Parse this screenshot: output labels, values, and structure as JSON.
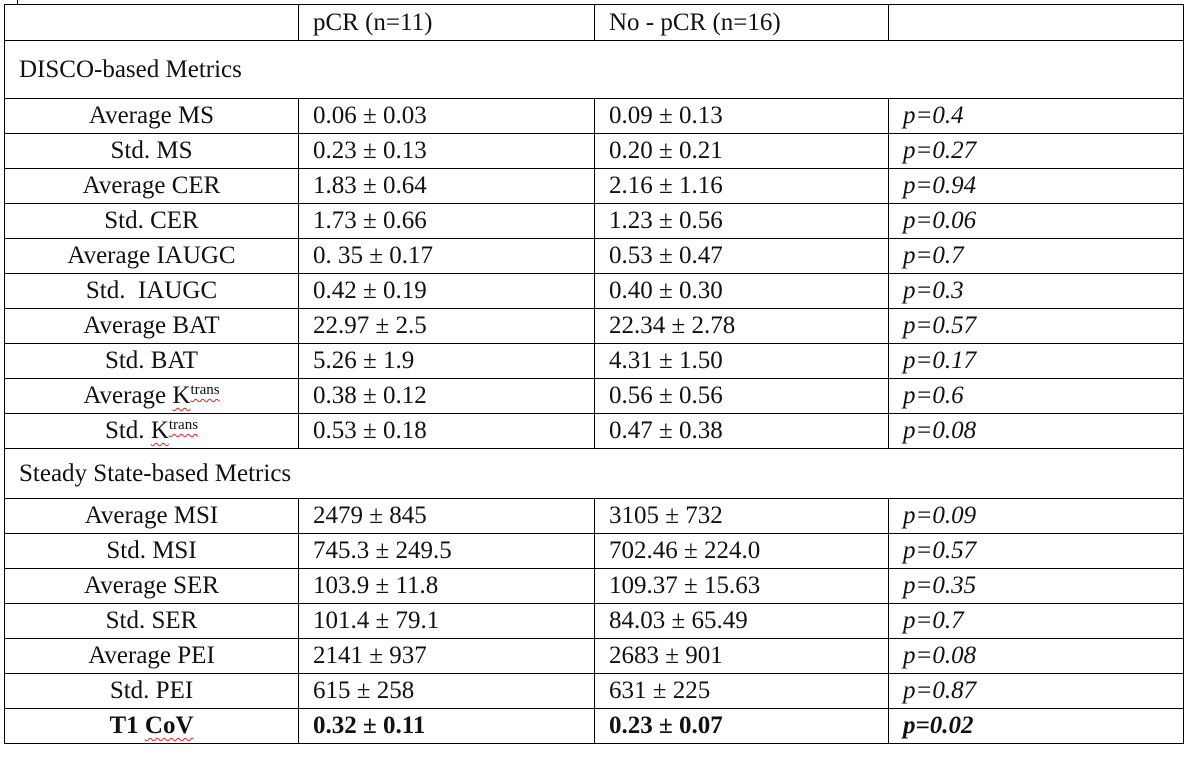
{
  "table": {
    "header": {
      "cells": [
        "pCR (n=11)",
        "No - pCR (n=16)"
      ]
    },
    "sections": [
      {
        "title": "DISCO-based Metrics",
        "rows": [
          {
            "metric": "Average MS",
            "pcr": "0.06 ± 0.03",
            "no_pcr": "0.09 ± 0.13",
            "p": "p=0.4"
          },
          {
            "metric": "Std. MS",
            "pcr": "0.23 ± 0.13",
            "no_pcr": "0.20 ± 0.21",
            "p": "p=0.27"
          },
          {
            "metric": "Average CER",
            "pcr": "1.83 ± 0.64",
            "no_pcr": "2.16 ± 1.16",
            "p": "p=0.94"
          },
          {
            "metric": "Std. CER",
            "pcr": "1.73 ± 0.66",
            "no_pcr": "1.23 ± 0.56",
            "p": "p=0.06"
          },
          {
            "metric": "Average IAUGC",
            "pcr": "0. 35 ± 0.17",
            "no_pcr": "0.53 ± 0.47",
            "p": "p=0.7"
          },
          {
            "metric": "Std.  IAUGC",
            "pcr": "0.42 ± 0.19",
            "no_pcr": "0.40 ± 0.30",
            "p": "p=0.3"
          },
          {
            "metric": "Average BAT",
            "pcr": "22.97 ± 2.5",
            "no_pcr": "22.34 ± 2.78",
            "p": "p=0.57"
          },
          {
            "metric": "Std. BAT",
            "pcr": "5.26 ± 1.9",
            "no_pcr": "4.31 ± 1.50",
            "p": "p=0.17"
          },
          {
            "metric": "Average K",
            "metric_sup": "trans",
            "misspelled": true,
            "pcr": "0.38 ± 0.12",
            "no_pcr": "0.56 ± 0.56",
            "p": "p=0.6"
          },
          {
            "metric": "Std. K",
            "metric_sup": "trans",
            "misspelled": true,
            "pcr": "0.53 ± 0.18",
            "no_pcr": "0.47 ± 0.38",
            "p": "p=0.08"
          }
        ]
      },
      {
        "title": "Steady State-based Metrics",
        "rows": [
          {
            "metric": "Average MSI",
            "pcr": "2479 ± 845",
            "no_pcr": "3105 ± 732",
            "p": "p=0.09"
          },
          {
            "metric": "Std. MSI",
            "pcr": "745.3 ± 249.5",
            "no_pcr": "702.46 ± 224.0",
            "p": "p=0.57"
          },
          {
            "metric": "Average SER",
            "pcr": "103.9 ± 11.8",
            "no_pcr": "109.37 ± 15.63",
            "p": "p=0.35"
          },
          {
            "metric": "Std. SER",
            "pcr": "101.4 ± 79.1",
            "no_pcr": "84.03 ± 65.49",
            "p": "p=0.7"
          },
          {
            "metric": "Average PEI",
            "pcr": "2141 ± 937",
            "no_pcr": "2683 ± 901",
            "p": "p=0.08"
          },
          {
            "metric": "Std. PEI",
            "pcr": "615 ± 258",
            "no_pcr": "631 ± 225",
            "p": "p=0.87"
          },
          {
            "metric": "T1 CoV",
            "misspelled": true,
            "bold": true,
            "pcr": "0.32 ± 0.11",
            "no_pcr": "0.23 ± 0.07",
            "p": "p=0.02"
          }
        ]
      }
    ]
  }
}
